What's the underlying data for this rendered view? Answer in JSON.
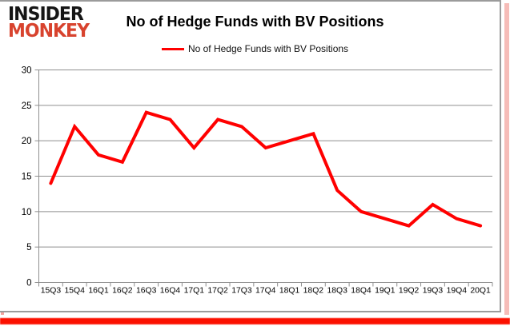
{
  "logo": {
    "line1": "INSIDER",
    "line2": "MONKEY",
    "accent_color": "#d8432e"
  },
  "header": {
    "title": "No of Hedge Funds with BV Positions"
  },
  "legend": {
    "label": "No of Hedge Funds with BV Positions",
    "line_color": "#ff0000"
  },
  "chart_data": {
    "type": "line",
    "title": "No of Hedge Funds with BV Positions",
    "categories": [
      "15Q3",
      "15Q4",
      "16Q1",
      "16Q2",
      "16Q3",
      "16Q4",
      "17Q1",
      "17Q2",
      "17Q3",
      "17Q4",
      "18Q1",
      "18Q2",
      "18Q3",
      "18Q4",
      "19Q1",
      "19Q2",
      "19Q3",
      "19Q4",
      "20Q1"
    ],
    "series": [
      {
        "name": "No of Hedge Funds with BV Positions",
        "color": "#ff0000",
        "values": [
          14,
          22,
          18,
          17,
          24,
          23,
          19,
          23,
          22,
          19,
          20,
          21,
          13,
          10,
          9,
          8,
          11,
          9,
          8
        ]
      }
    ],
    "xlabel": "",
    "ylabel": "",
    "ylim": [
      0,
      30
    ],
    "yticks": [
      0,
      5,
      10,
      15,
      20,
      25,
      30
    ],
    "grid": true,
    "gridline_color": "#8f8f8f",
    "legend_position": "top-center"
  }
}
